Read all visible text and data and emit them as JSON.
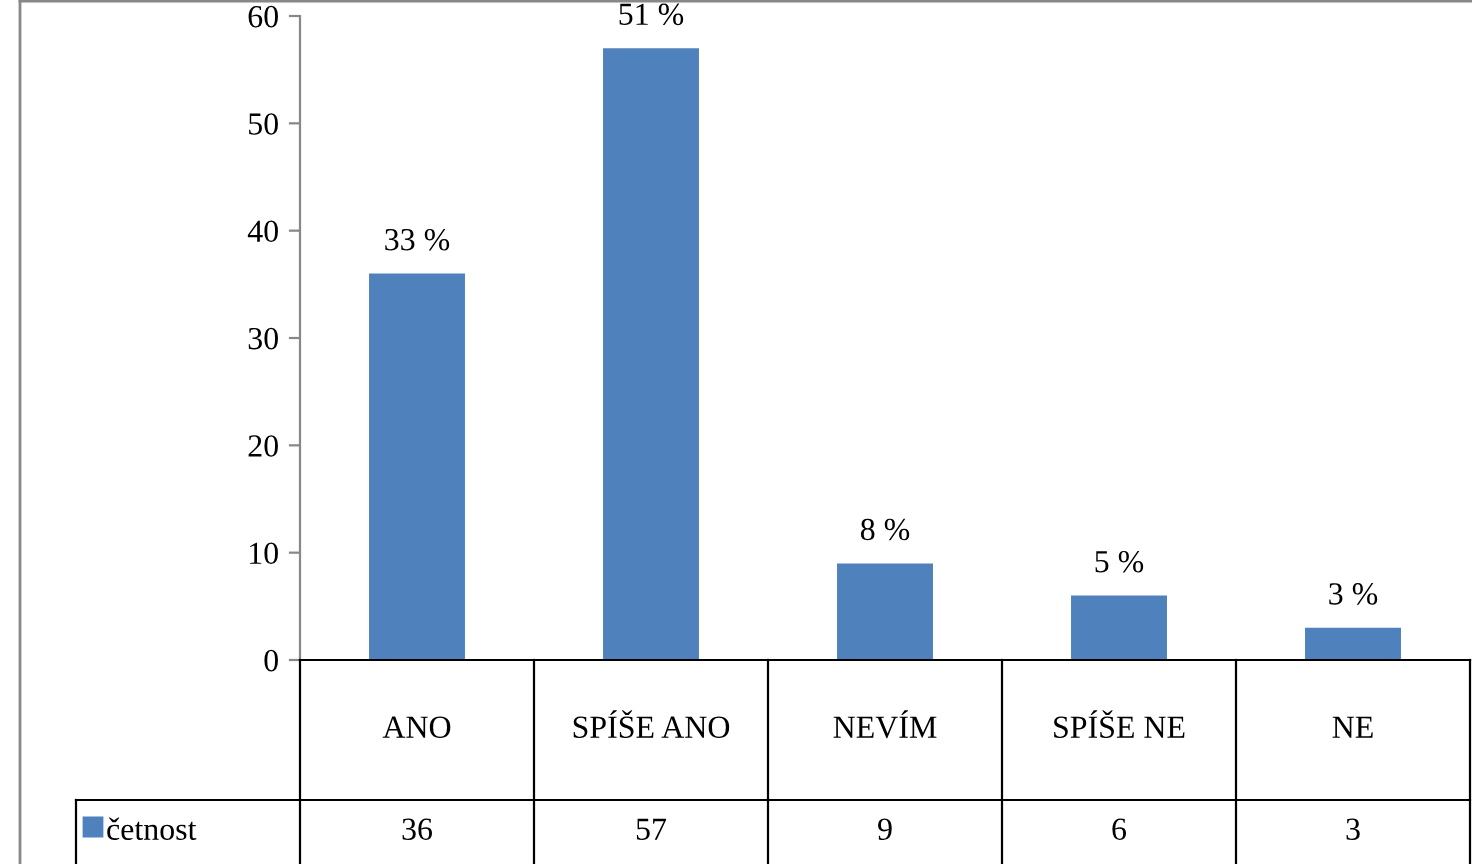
{
  "chart_data": {
    "type": "bar",
    "categories": [
      "ANO",
      "SPÍŠE ANO",
      "NEVÍM",
      "SPÍŠE NE",
      "NE"
    ],
    "series": [
      {
        "name": "četnost",
        "color": "#4f81bd",
        "values": [
          36,
          57,
          9,
          6,
          3
        ],
        "value_labels": [
          "36",
          "57",
          "9",
          "6",
          "3"
        ]
      }
    ],
    "annotations": [
      {
        "text": "33 %",
        "x": "ANO",
        "y": 36
      },
      {
        "text": "51 %",
        "x": "SPÍŠE ANO",
        "y": 57
      },
      {
        "text": "8 %",
        "x": "NEVÍM",
        "y": 9
      },
      {
        "text": "5 %",
        "x": "SPÍŠE NE",
        "y": 6
      },
      {
        "text": "3 %",
        "x": "NE",
        "y": 3
      }
    ],
    "ylim": [
      0,
      60
    ],
    "yticks": [
      0,
      10,
      20,
      30,
      40,
      50,
      60
    ],
    "legend": "bottom",
    "grid": false
  }
}
